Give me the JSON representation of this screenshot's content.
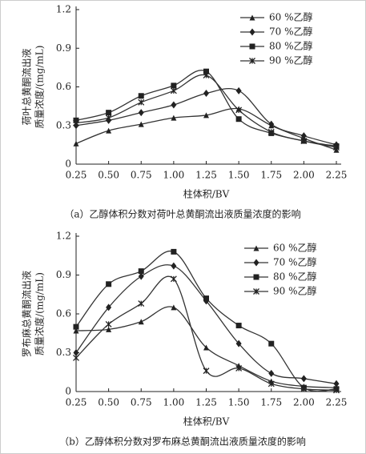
{
  "chart_data": [
    {
      "type": "line",
      "caption": "（a）乙醇体积分数对荷叶总黄酮流出液质量浓度的影响",
      "xlabel": "柱体积/BV",
      "ylabel": [
        "荷叶总黄酮流出液",
        "质量浓度/(mg/mL)"
      ],
      "x": [
        0.25,
        0.5,
        0.75,
        1.0,
        1.25,
        1.5,
        1.75,
        2.0,
        2.25
      ],
      "xlim": [
        0.25,
        2.25
      ],
      "xticks": [
        0.25,
        {
          "value": 0.5,
          "label": "0.50"
        },
        0.75,
        {
          "value": 1.0,
          "label": "1.00"
        },
        1.25,
        {
          "value": 1.5,
          "label": "1.50"
        },
        1.75,
        {
          "value": 2.0,
          "label": "2.00"
        },
        2.25
      ],
      "ylim": [
        0,
        1.2
      ],
      "yticks": [
        0,
        0.3,
        0.6,
        0.9,
        1.2
      ],
      "legend": "upper right",
      "series": [
        {
          "name": "60 %乙醇",
          "color": "#333333",
          "marker": "triangle",
          "values": [
            0.16,
            0.26,
            0.31,
            0.36,
            0.38,
            0.43,
            0.3,
            0.2,
            0.11
          ]
        },
        {
          "name": "70 %乙醇",
          "color": "#333333",
          "marker": "diamond",
          "values": [
            0.3,
            0.34,
            0.4,
            0.46,
            0.55,
            0.57,
            0.31,
            0.22,
            0.15
          ]
        },
        {
          "name": "80 %乙醇",
          "color": "#333333",
          "marker": "square",
          "values": [
            0.34,
            0.4,
            0.53,
            0.61,
            0.72,
            0.35,
            0.24,
            0.18,
            0.14
          ]
        },
        {
          "name": "90 %乙醇",
          "color": "#333333",
          "marker": "x",
          "values": [
            0.32,
            0.36,
            0.48,
            0.57,
            0.69,
            0.42,
            0.25,
            0.18,
            0.13
          ]
        }
      ]
    },
    {
      "type": "line",
      "caption": "（b）乙醇体积分数对罗布麻总黄酮流出液质量浓度的影响",
      "xlabel": "柱体积/BV",
      "ylabel": [
        "罗布麻总黄酮流出液",
        "质量浓度/(mg/mL)"
      ],
      "x": [
        0.25,
        0.5,
        0.75,
        1.0,
        1.25,
        1.5,
        1.75,
        2.0,
        2.25
      ],
      "xlim": [
        0.25,
        2.25
      ],
      "xticks": [
        0.25,
        {
          "value": 0.5,
          "label": "0.50"
        },
        0.75,
        {
          "value": 1.0,
          "label": "1.00"
        },
        1.25,
        {
          "value": 1.5,
          "label": "1.50"
        },
        1.75,
        {
          "value": 2.0,
          "label": "2.00"
        },
        2.25
      ],
      "ylim": [
        0,
        1.2
      ],
      "yticks": [
        0,
        0.3,
        0.6,
        0.9,
        1.2
      ],
      "legend": "upper right",
      "series": [
        {
          "name": "60 %乙醇",
          "color": "#333333",
          "marker": "triangle",
          "values": [
            0.47,
            0.48,
            0.54,
            0.65,
            0.34,
            0.2,
            0.08,
            0.04,
            0.03
          ]
        },
        {
          "name": "70 %乙醇",
          "color": "#333333",
          "marker": "diamond",
          "values": [
            0.3,
            0.65,
            0.89,
            0.97,
            0.7,
            0.37,
            0.14,
            0.1,
            0.06
          ]
        },
        {
          "name": "80 %乙醇",
          "color": "#333333",
          "marker": "square",
          "values": [
            0.5,
            0.83,
            0.93,
            1.08,
            0.72,
            0.51,
            0.37,
            0.03,
            0.02
          ]
        },
        {
          "name": "90 %乙醇",
          "color": "#333333",
          "marker": "x",
          "values": [
            0.26,
            0.52,
            0.68,
            0.87,
            0.16,
            0.18,
            0.06,
            0.02,
            0.01
          ]
        }
      ]
    }
  ]
}
